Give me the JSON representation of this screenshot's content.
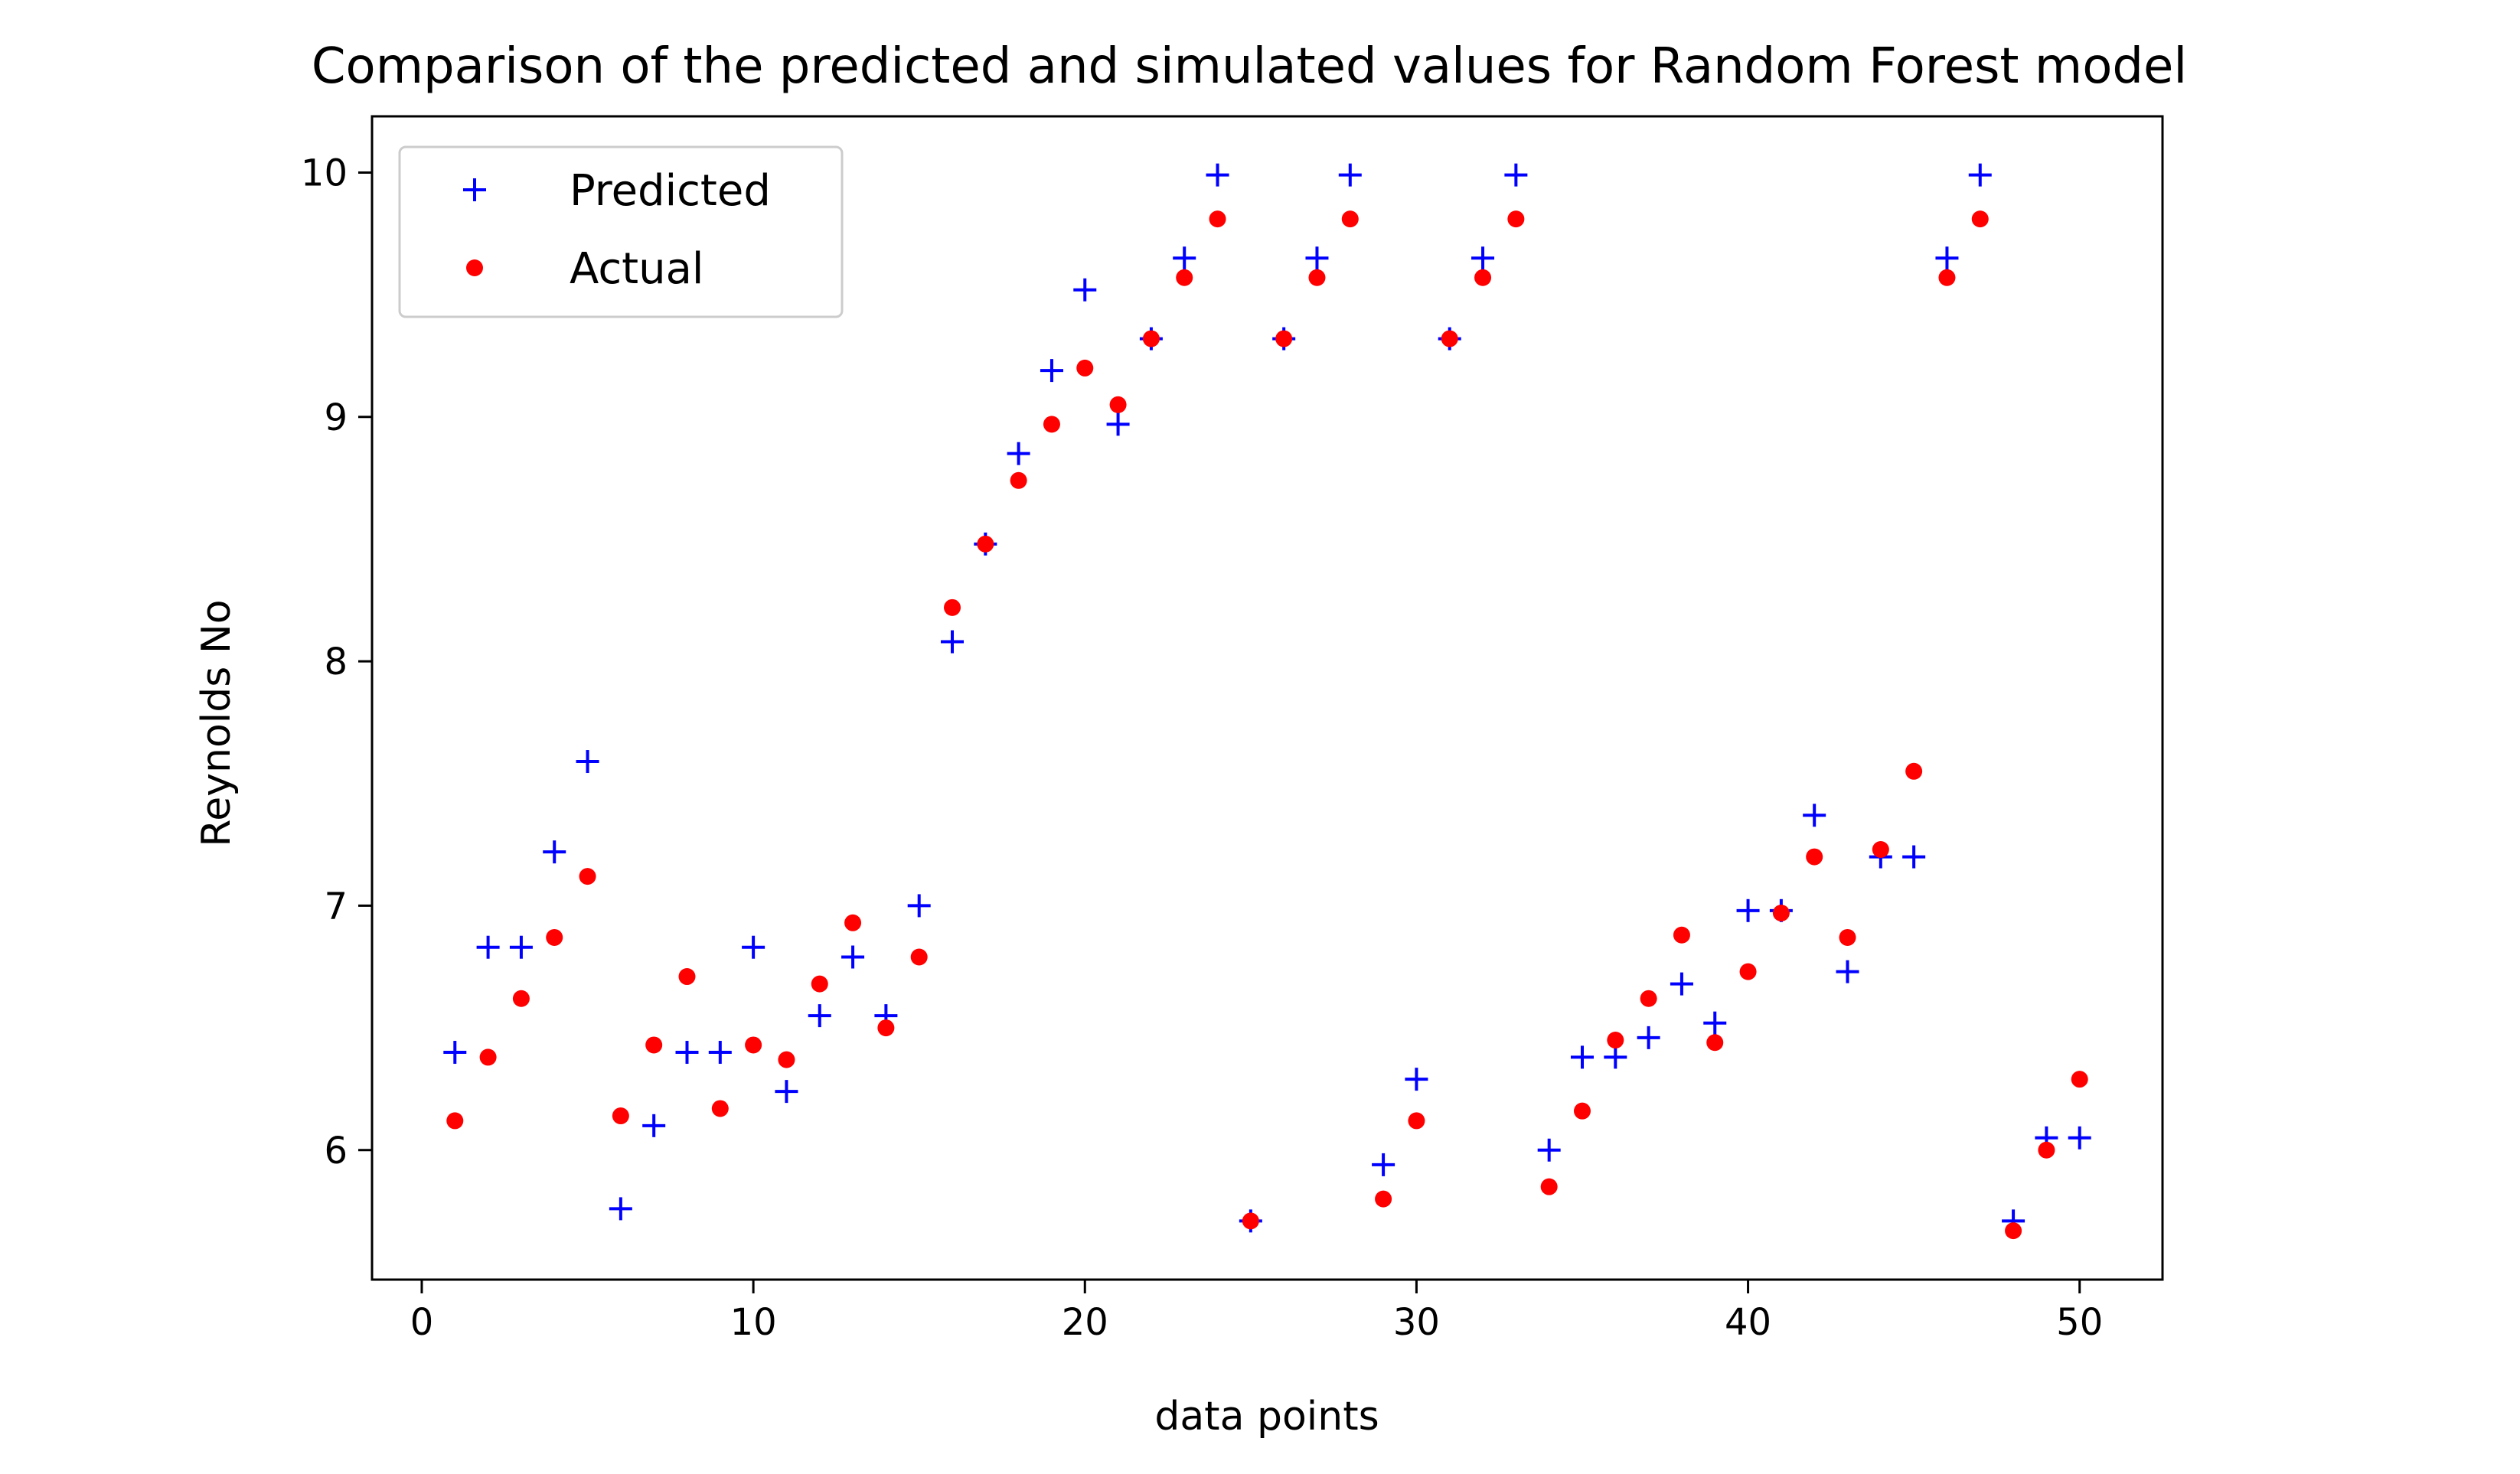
{
  "chart_data": {
    "type": "scatter",
    "title": "Comparison of the predicted and simulated values for Random Forest model",
    "xlabel": "data points",
    "ylabel": "Reynolds No",
    "xlim": [
      -1.5,
      52.5
    ],
    "ylim": [
      5.47,
      10.23
    ],
    "xticks": [
      0,
      10,
      20,
      30,
      40,
      50
    ],
    "yticks": [
      6,
      7,
      8,
      9,
      10
    ],
    "grid": false,
    "legend_position": "top-left",
    "x": [
      1,
      2,
      3,
      4,
      5,
      6,
      7,
      8,
      9,
      10,
      11,
      12,
      13,
      14,
      15,
      16,
      17,
      18,
      19,
      20,
      21,
      22,
      23,
      24,
      25,
      26,
      27,
      28,
      29,
      30,
      31,
      32,
      33,
      34,
      35,
      36,
      37,
      38,
      39,
      40,
      41,
      42,
      43,
      44,
      45,
      46,
      47,
      48,
      49,
      50
    ],
    "series": [
      {
        "name": "Predicted",
        "marker": "plus",
        "color": "#0000ff",
        "values": [
          6.4,
          6.83,
          6.83,
          7.22,
          7.59,
          5.76,
          6.1,
          6.4,
          6.4,
          6.83,
          6.24,
          6.55,
          6.79,
          6.55,
          7.0,
          8.08,
          8.48,
          8.85,
          9.19,
          9.52,
          8.97,
          9.32,
          9.65,
          9.99,
          5.71,
          9.32,
          9.65,
          9.99,
          5.94,
          6.29,
          9.32,
          9.65,
          9.99,
          6.0,
          6.38,
          6.38,
          6.46,
          6.68,
          6.52,
          6.98,
          6.98,
          7.37,
          6.73,
          7.2,
          7.2,
          9.65,
          9.99,
          5.71,
          6.05,
          6.05
        ]
      },
      {
        "name": "Actual",
        "marker": "dot",
        "color": "#ff0000",
        "values": [
          6.12,
          6.38,
          6.62,
          6.87,
          7.12,
          6.14,
          6.43,
          6.71,
          6.17,
          6.43,
          6.37,
          6.68,
          6.93,
          6.5,
          6.79,
          8.22,
          8.48,
          8.74,
          8.97,
          9.2,
          9.05,
          9.32,
          9.57,
          9.81,
          5.71,
          9.32,
          9.57,
          9.81,
          5.8,
          6.12,
          9.32,
          9.57,
          9.81,
          5.85,
          6.16,
          6.45,
          6.62,
          6.88,
          6.44,
          6.73,
          6.97,
          7.2,
          6.87,
          7.23,
          7.55,
          9.57,
          9.81,
          5.67,
          6.0,
          6.29
        ]
      }
    ]
  }
}
